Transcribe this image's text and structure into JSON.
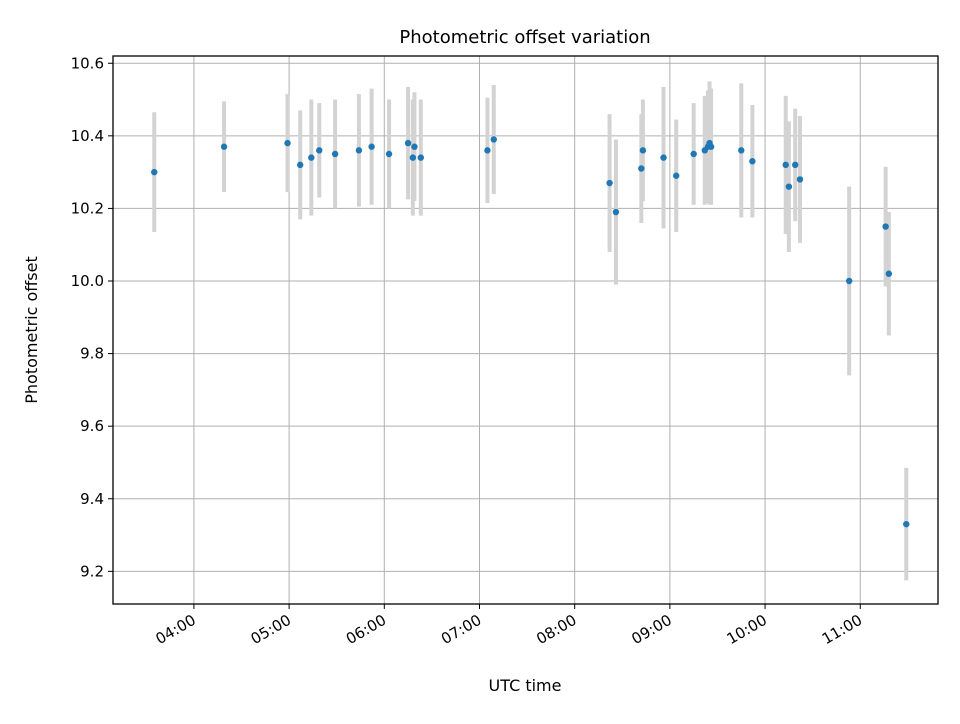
{
  "chart_data": {
    "type": "scatter",
    "title": "Photometric offset variation",
    "xlabel": "UTC time",
    "ylabel": "Photometric offset",
    "grid": true,
    "x_tick_labels": [
      "04:00",
      "05:00",
      "06:00",
      "07:00",
      "08:00",
      "09:00",
      "10:00",
      "11:00"
    ],
    "y_tick_labels": [
      "9.2",
      "9.4",
      "9.6",
      "9.8",
      "10.0",
      "10.2",
      "10.4",
      "10.6"
    ],
    "xlim": [
      "03:09",
      "11:49"
    ],
    "ylim": [
      9.11,
      10.62
    ],
    "colors": {
      "points": "#1f77b4",
      "error_bars": "#d3d3d3",
      "grid": "#b0b0b0"
    },
    "series": [
      {
        "points": [
          {
            "x": "03:35",
            "y": 10.3,
            "err": 0.165
          },
          {
            "x": "04:19",
            "y": 10.37,
            "err": 0.125
          },
          {
            "x": "04:59",
            "y": 10.38,
            "err": 0.135
          },
          {
            "x": "05:07",
            "y": 10.32,
            "err": 0.15
          },
          {
            "x": "05:14",
            "y": 10.34,
            "err": 0.16
          },
          {
            "x": "05:19",
            "y": 10.36,
            "err": 0.13
          },
          {
            "x": "05:29",
            "y": 10.35,
            "err": 0.15
          },
          {
            "x": "05:44",
            "y": 10.36,
            "err": 0.155
          },
          {
            "x": "05:52",
            "y": 10.37,
            "err": 0.16
          },
          {
            "x": "06:03",
            "y": 10.35,
            "err": 0.15
          },
          {
            "x": "06:15",
            "y": 10.38,
            "err": 0.155
          },
          {
            "x": "06:18",
            "y": 10.34,
            "err": 0.16
          },
          {
            "x": "06:19",
            "y": 10.37,
            "err": 0.15
          },
          {
            "x": "06:23",
            "y": 10.34,
            "err": 0.16
          },
          {
            "x": "07:05",
            "y": 10.36,
            "err": 0.145
          },
          {
            "x": "07:09",
            "y": 10.39,
            "err": 0.15
          },
          {
            "x": "08:22",
            "y": 10.27,
            "err": 0.19
          },
          {
            "x": "08:26",
            "y": 10.19,
            "err": 0.2
          },
          {
            "x": "08:42",
            "y": 10.31,
            "err": 0.15
          },
          {
            "x": "08:43",
            "y": 10.36,
            "err": 0.14
          },
          {
            "x": "08:56",
            "y": 10.34,
            "err": 0.195
          },
          {
            "x": "09:04",
            "y": 10.29,
            "err": 0.155
          },
          {
            "x": "09:15",
            "y": 10.35,
            "err": 0.14
          },
          {
            "x": "09:22",
            "y": 10.36,
            "err": 0.15
          },
          {
            "x": "09:24",
            "y": 10.37,
            "err": 0.155
          },
          {
            "x": "09:25",
            "y": 10.38,
            "err": 0.17
          },
          {
            "x": "09:26",
            "y": 10.37,
            "err": 0.16
          },
          {
            "x": "09:45",
            "y": 10.36,
            "err": 0.185
          },
          {
            "x": "09:52",
            "y": 10.33,
            "err": 0.155
          },
          {
            "x": "10:13",
            "y": 10.32,
            "err": 0.19
          },
          {
            "x": "10:15",
            "y": 10.26,
            "err": 0.18
          },
          {
            "x": "10:19",
            "y": 10.32,
            "err": 0.155
          },
          {
            "x": "10:22",
            "y": 10.28,
            "err": 0.175
          },
          {
            "x": "10:53",
            "y": 10.0,
            "err": 0.26
          },
          {
            "x": "11:16",
            "y": 10.15,
            "err": 0.165
          },
          {
            "x": "11:18",
            "y": 10.02,
            "err": 0.17
          },
          {
            "x": "11:29",
            "y": 9.33,
            "err": 0.155
          }
        ]
      }
    ]
  }
}
